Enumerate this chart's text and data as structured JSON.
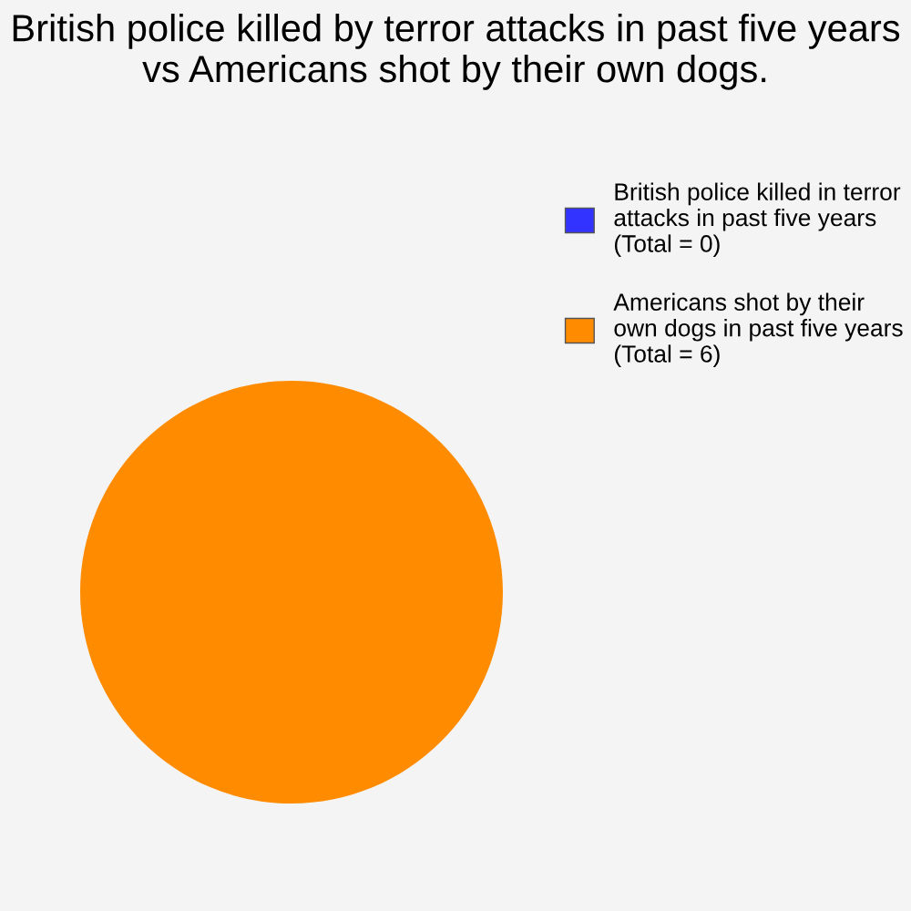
{
  "chart_data": {
    "type": "pie",
    "title": "British police killed by terror attacks in past five years vs Americans shot by their own dogs.",
    "categories": [
      "British police killed in terror\nattacks in past five years\n(Total = 0)",
      "Americans shot by their\nown dogs in past five years\n(Total = 6)"
    ],
    "values": [
      0,
      6
    ],
    "colors": [
      "#3333ff",
      "#ff8c00"
    ],
    "legend": "top right"
  }
}
